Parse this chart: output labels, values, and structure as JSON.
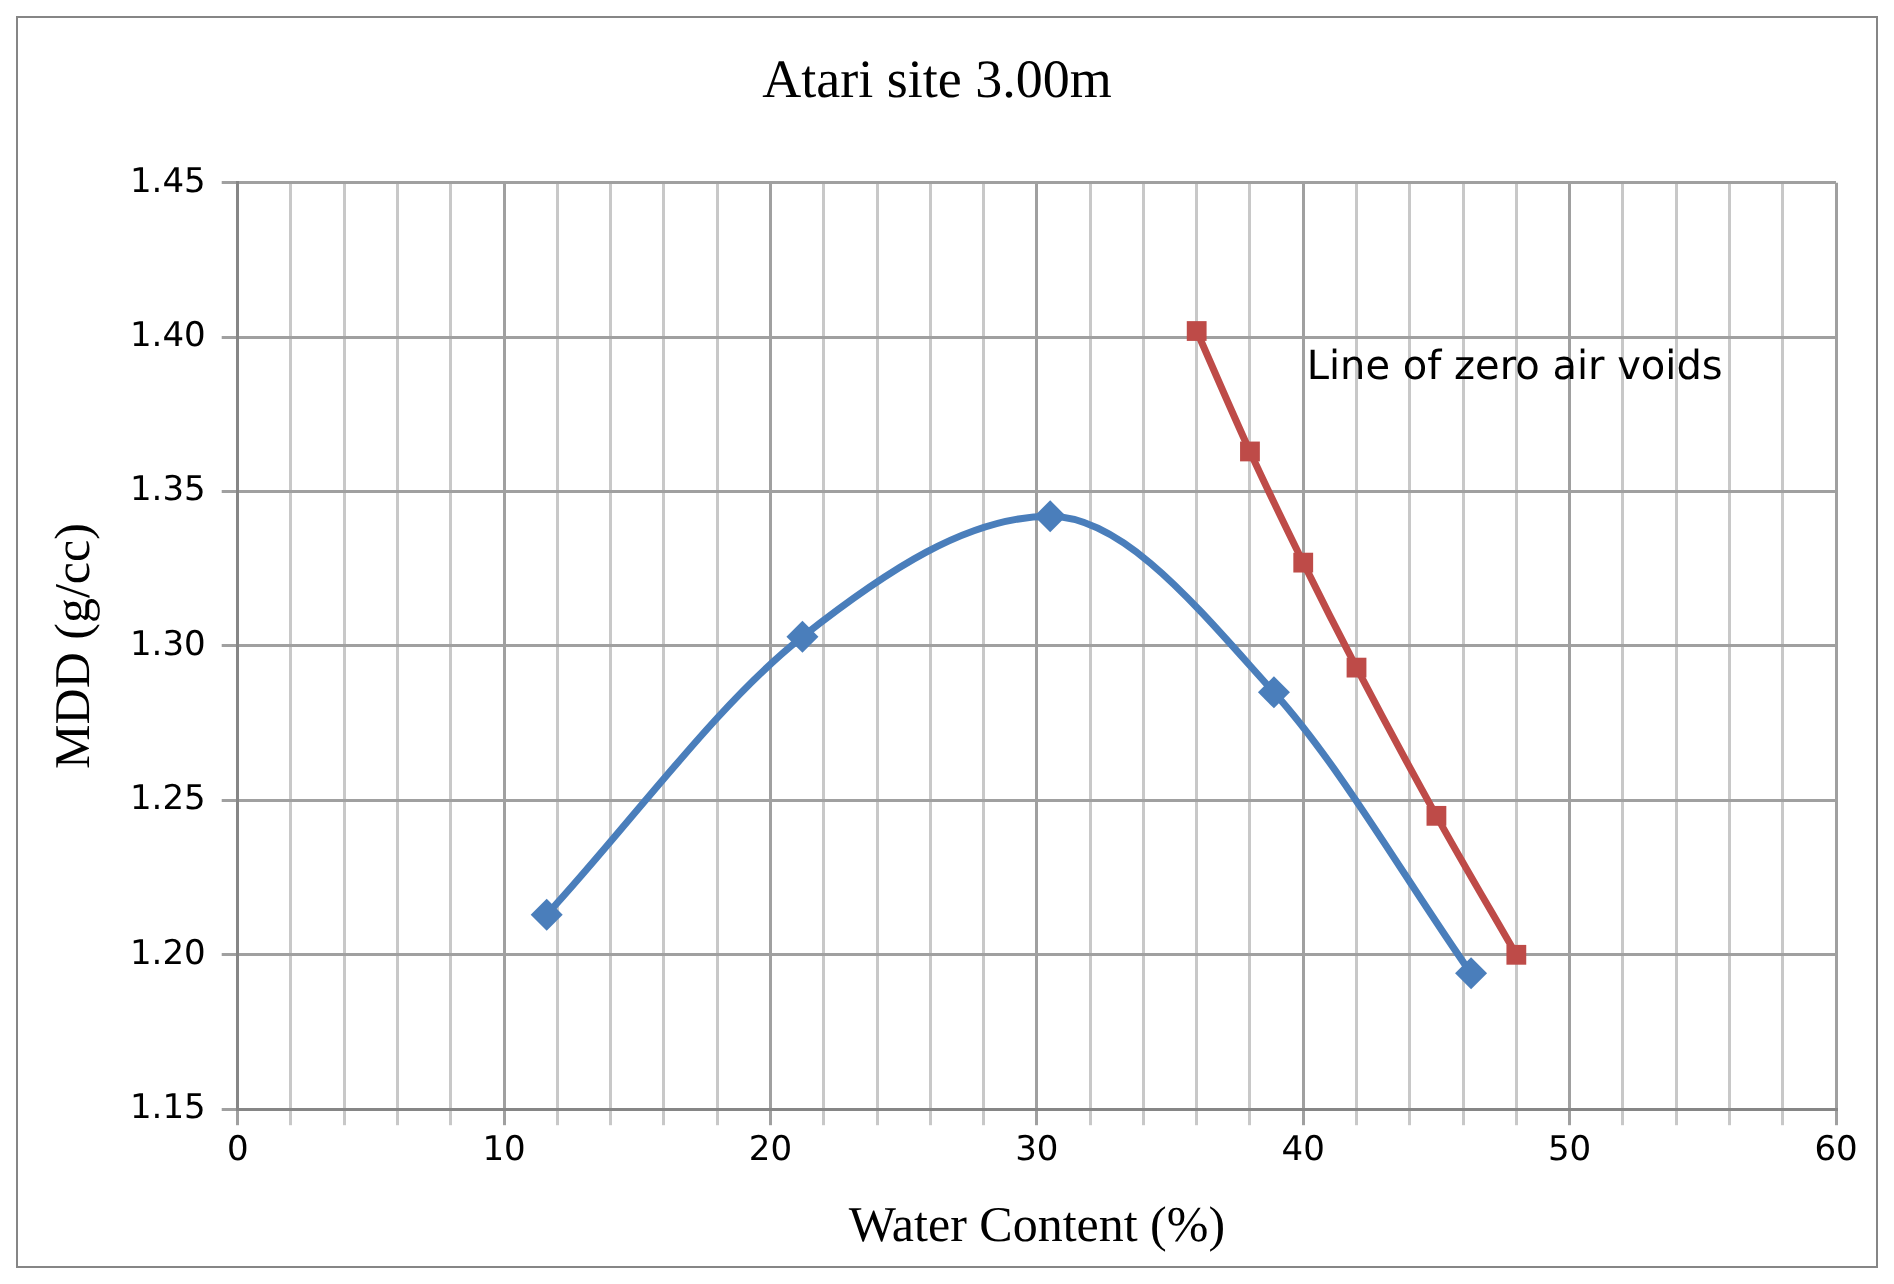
{
  "chart_data": {
    "type": "line",
    "title": "Atari site 3.00m",
    "xlabel": "Water Content (%)",
    "ylabel": "MDD (g/cc)",
    "xlim": [
      0,
      60
    ],
    "xticks": [
      0,
      10,
      20,
      30,
      40,
      50,
      60
    ],
    "ylim": [
      1.15,
      1.45
    ],
    "yticks": [
      {
        "value": 1.15,
        "label": "1.15"
      },
      {
        "value": 1.2,
        "label": "1.20"
      },
      {
        "value": 1.25,
        "label": "1.25"
      },
      {
        "value": 1.3,
        "label": "1.30"
      },
      {
        "value": 1.35,
        "label": "1.35"
      },
      {
        "value": 1.4,
        "label": "1.40"
      },
      {
        "value": 1.45,
        "label": "1.45"
      }
    ],
    "grid": true,
    "legend": false,
    "series": [
      {
        "color": "#4a7ebb",
        "marker": "diamond",
        "x": [
          11.6,
          21.2,
          30.5,
          38.9,
          46.3
        ],
        "values": [
          1.213,
          1.303,
          1.342,
          1.285,
          1.194
        ]
      },
      {
        "name": "Line of zero air voids",
        "color": "#be4b48",
        "marker": "square",
        "x": [
          36,
          38,
          40,
          42,
          45,
          48
        ],
        "values": [
          1.402,
          1.363,
          1.327,
          1.293,
          1.245,
          1.2
        ]
      }
    ]
  }
}
